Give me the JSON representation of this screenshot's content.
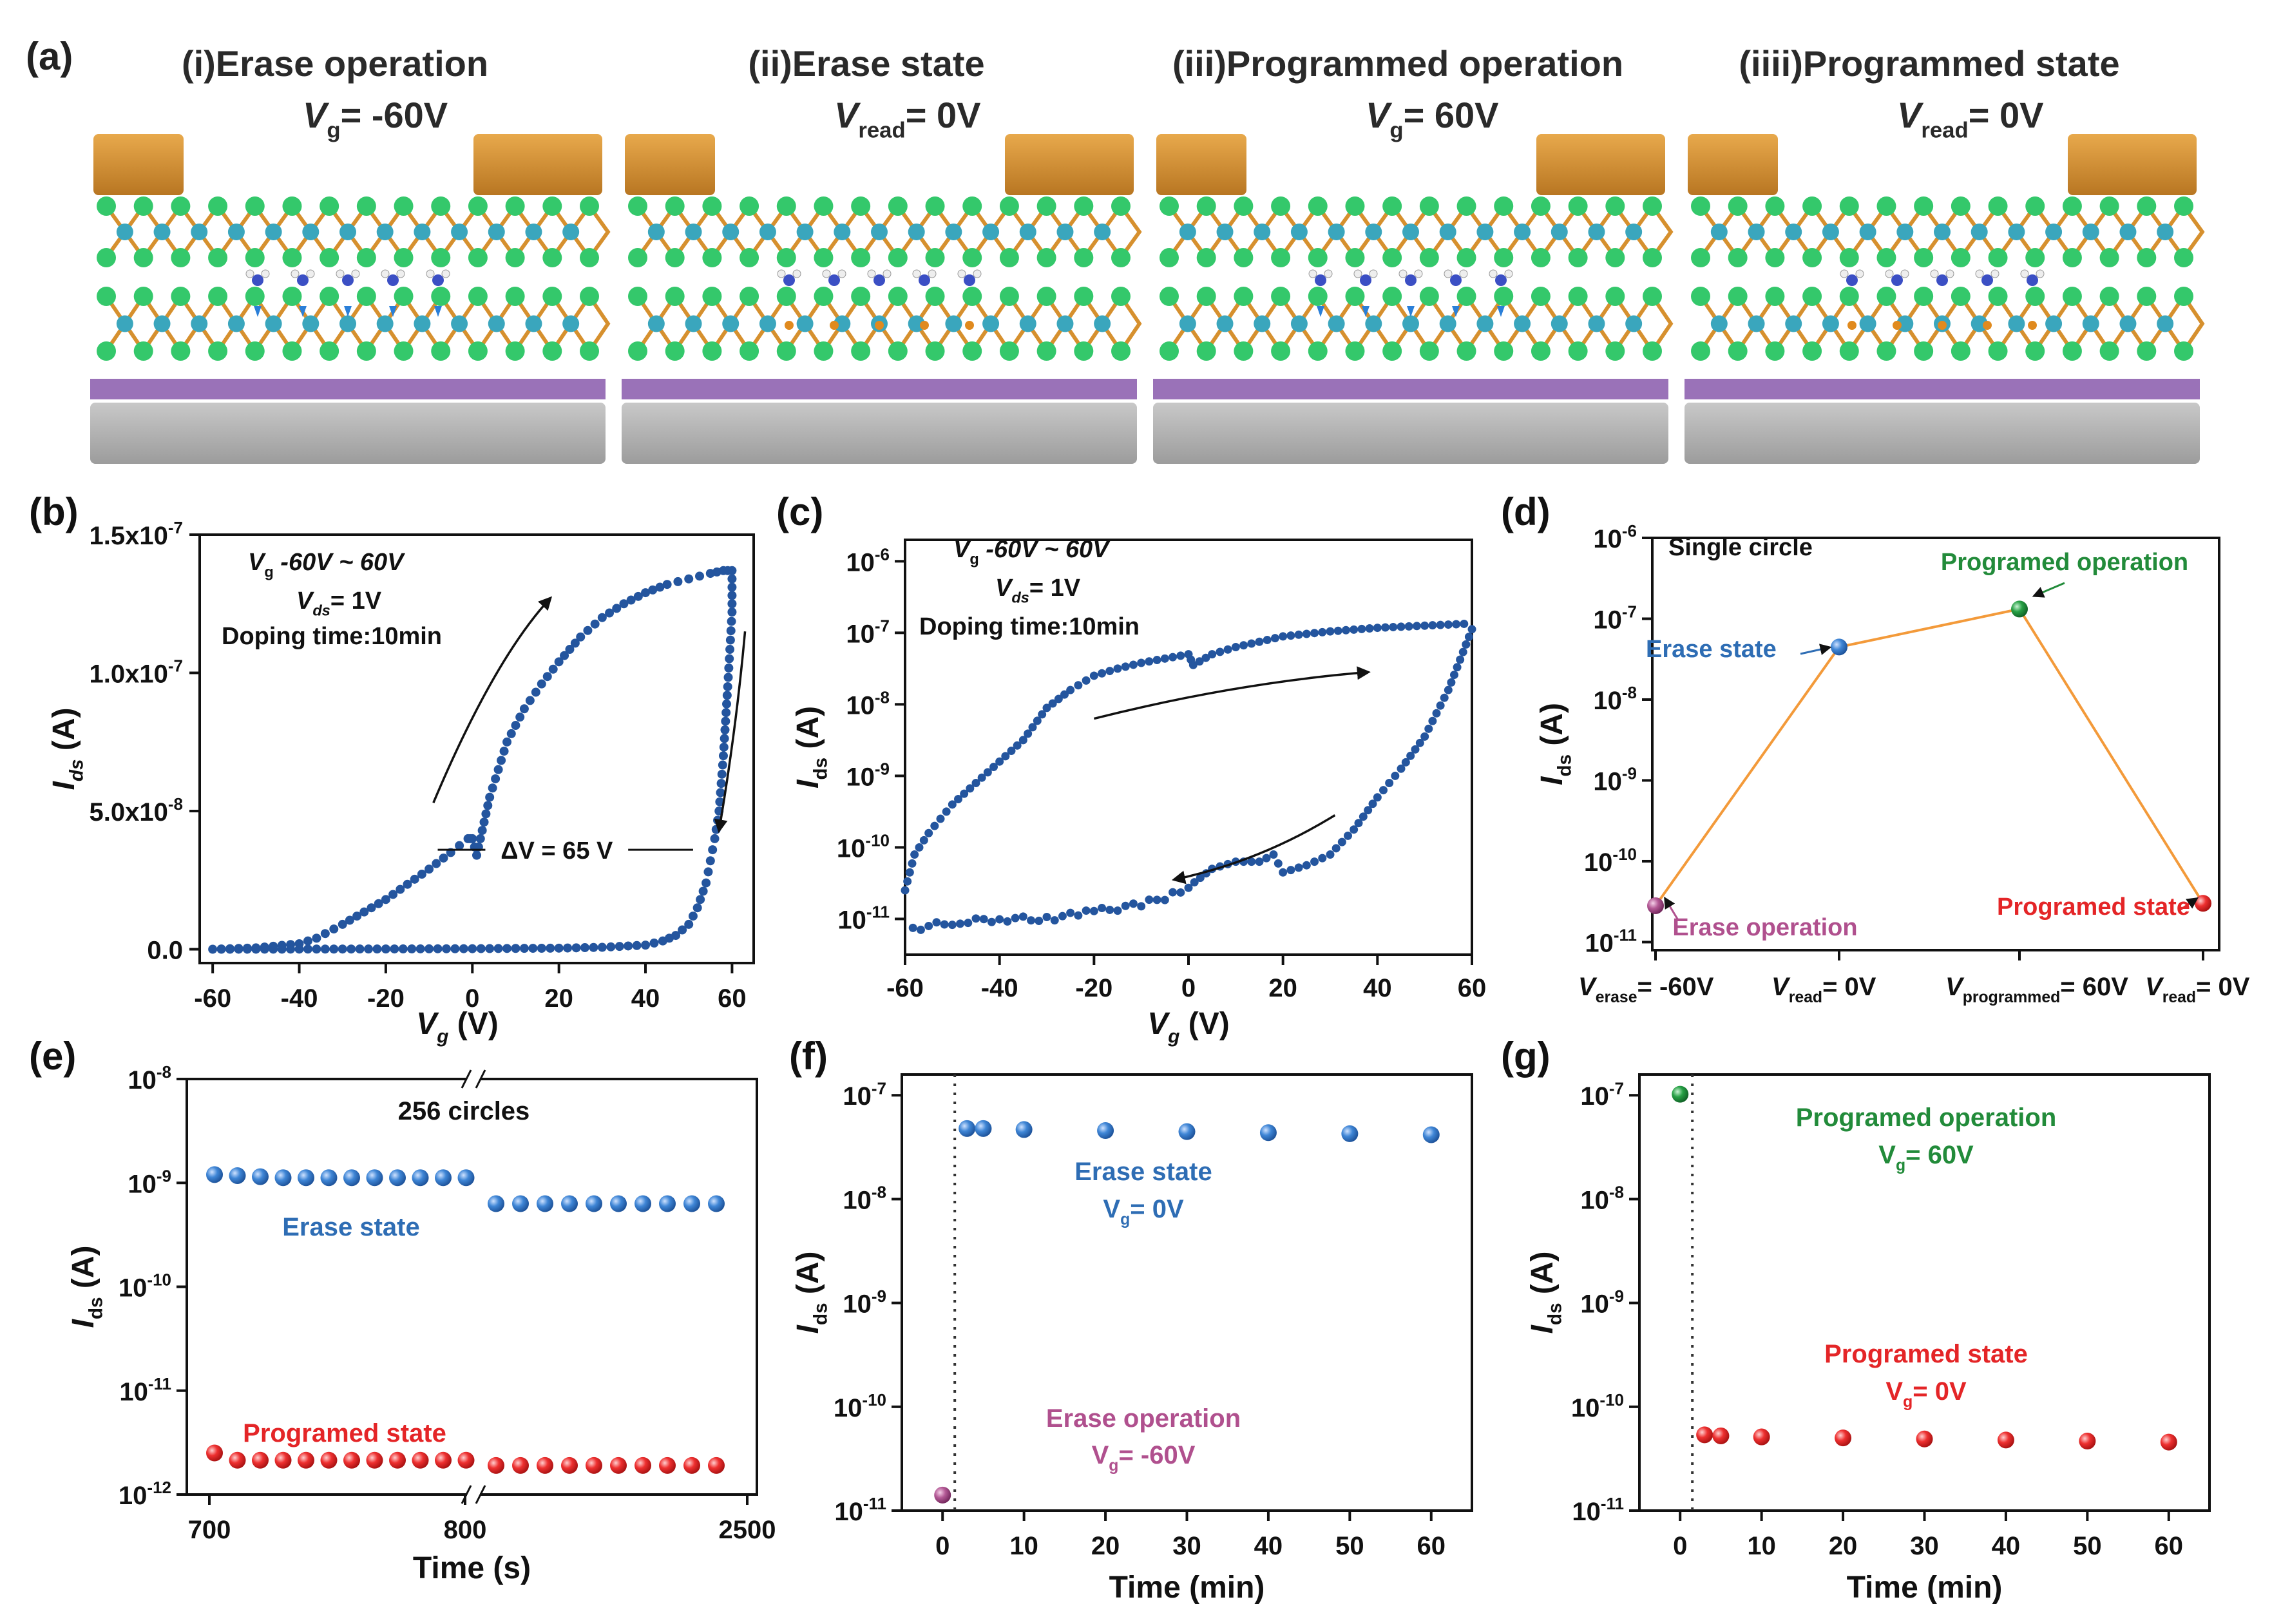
{
  "colors": {
    "blue": "#2e6db4",
    "dark_blue": "#24559e",
    "red": "#e42527",
    "green": "#228b3a",
    "purple": "#b0508e",
    "orange": "#f39a3a",
    "gold": "#d6902e",
    "purple_layer": "#9a72b8",
    "gray_layer": "#b3b3b3",
    "atom_green": "#34c86b",
    "atom_teal": "#3aa6bd"
  },
  "panel_a": {
    "label": "(a)",
    "stages": [
      {
        "title": "(i)Erase operation",
        "var": "V",
        "sub": "g",
        "value": "= -60V"
      },
      {
        "title": "(ii)Erase state",
        "var": "V",
        "sub": "read",
        "value": "= 0V"
      },
      {
        "title": "(iii)Programmed operation",
        "var": "V",
        "sub": "g",
        "value": "= 60V"
      },
      {
        "title": "(iiii)Programmed state",
        "var": "V",
        "sub": "read",
        "value": "= 0V"
      }
    ]
  },
  "chart_data": [
    {
      "id": "b",
      "label": "(b)",
      "type": "scatter",
      "title": "",
      "xlabel": "V",
      "xlabel_sub": "g",
      "xlabel_unit": "(V)",
      "ylabel": "I",
      "ylabel_sub": "ds",
      "ylabel_unit": "(A)",
      "xlim": [
        -63,
        65
      ],
      "ylim": [
        -0.05,
        1.5
      ],
      "xticks": [
        -60,
        -40,
        -20,
        0,
        20,
        40,
        60
      ],
      "xtick_labels": [
        "-60",
        "-40",
        "-20",
        "0",
        "20",
        "40",
        "60"
      ],
      "yticks": [
        0.0,
        0.5,
        1.0,
        1.5
      ],
      "ytick_labels": [
        "0.0",
        "5.0x10",
        "1.0x10",
        "1.5x10"
      ],
      "ytick_exp": [
        "",
        "-8",
        "-7",
        "-7"
      ],
      "y_units_note": "values in 1e-7 A",
      "series": [
        {
          "name": "forward sweep",
          "points": [
            [
              -60,
              0.0
            ],
            [
              -50,
              0.005
            ],
            [
              -40,
              0.02
            ],
            [
              -36,
              0.04
            ],
            [
              -30,
              0.09
            ],
            [
              -20,
              0.18
            ],
            [
              -10,
              0.29
            ],
            [
              -5,
              0.35
            ],
            [
              -1,
              0.4
            ],
            [
              0,
              0.4
            ],
            [
              1,
              0.34
            ],
            [
              4,
              0.55
            ],
            [
              8,
              0.75
            ],
            [
              12,
              0.87
            ],
            [
              16,
              0.96
            ],
            [
              20,
              1.04
            ],
            [
              25,
              1.13
            ],
            [
              30,
              1.2
            ],
            [
              35,
              1.25
            ],
            [
              40,
              1.29
            ],
            [
              45,
              1.32
            ],
            [
              50,
              1.34
            ],
            [
              55,
              1.36
            ],
            [
              58,
              1.37
            ],
            [
              60,
              1.37
            ]
          ]
        },
        {
          "name": "reverse sweep",
          "points": [
            [
              60,
              1.37
            ],
            [
              60,
              1.22
            ],
            [
              59,
              0.95
            ],
            [
              58,
              0.7
            ],
            [
              57,
              0.5
            ],
            [
              56,
              0.4
            ],
            [
              55,
              0.32
            ],
            [
              54,
              0.24
            ],
            [
              52,
              0.15
            ],
            [
              50,
              0.09
            ],
            [
              47,
              0.05
            ],
            [
              44,
              0.03
            ],
            [
              40,
              0.015
            ],
            [
              30,
              0.007
            ],
            [
              20,
              0.004
            ],
            [
              0,
              0.002
            ],
            [
              -20,
              0.001
            ],
            [
              -40,
              0.0005
            ],
            [
              -60,
              0.0
            ]
          ]
        }
      ],
      "annotations": [
        {
          "text": "V",
          "sub": "g",
          "rest": " -60V ~ 60V"
        },
        {
          "text": "V",
          "sub": "ds",
          "rest": "= 1V"
        },
        {
          "text": "Doping time:10min"
        },
        {
          "text": "ΔV = 65 V"
        }
      ]
    },
    {
      "id": "c",
      "label": "(c)",
      "type": "scatter",
      "yscale": "log",
      "xlabel": "V",
      "xlabel_sub": "g",
      "xlabel_unit": "(V)",
      "ylabel": "I",
      "ylabel_sub": "ds",
      "ylabel_unit": "(A)",
      "xlim": [
        -60,
        60
      ],
      "ylim_exp": [
        -11.5,
        -5.7
      ],
      "xticks": [
        -60,
        -40,
        -20,
        0,
        20,
        40,
        60
      ],
      "xtick_labels": [
        "-60",
        "-40",
        "-20",
        "0",
        "20",
        "40",
        "60"
      ],
      "ytick_exps": [
        -11,
        -10,
        -9,
        -8,
        -7,
        -6
      ],
      "ytick_base": "10",
      "series": [
        {
          "name": "forward sweep",
          "log_points": [
            [
              -60,
              -10.6
            ],
            [
              -58,
              -10.1
            ],
            [
              -55,
              -9.8
            ],
            [
              -50,
              -9.4
            ],
            [
              -45,
              -9.1
            ],
            [
              -40,
              -8.8
            ],
            [
              -35,
              -8.5
            ],
            [
              -30,
              -8.05
            ],
            [
              -25,
              -7.8
            ],
            [
              -20,
              -7.6
            ],
            [
              -15,
              -7.5
            ],
            [
              -10,
              -7.42
            ],
            [
              -5,
              -7.36
            ],
            [
              0,
              -7.3
            ],
            [
              1,
              -7.45
            ],
            [
              5,
              -7.3
            ],
            [
              10,
              -7.2
            ],
            [
              20,
              -7.05
            ],
            [
              30,
              -6.98
            ],
            [
              40,
              -6.93
            ],
            [
              50,
              -6.9
            ],
            [
              60,
              -6.87
            ]
          ]
        },
        {
          "name": "reverse sweep",
          "log_points": [
            [
              60,
              -6.95
            ],
            [
              55,
              -7.8
            ],
            [
              50,
              -8.45
            ],
            [
              45,
              -8.9
            ],
            [
              40,
              -9.3
            ],
            [
              35,
              -9.75
            ],
            [
              30,
              -10.1
            ],
            [
              25,
              -10.25
            ],
            [
              20,
              -10.35
            ],
            [
              18,
              -10.1
            ],
            [
              15,
              -10.2
            ],
            [
              10,
              -10.2
            ],
            [
              5,
              -10.3
            ],
            [
              0,
              -10.55
            ],
            [
              -5,
              -10.7
            ],
            [
              -10,
              -10.8
            ],
            [
              -20,
              -10.9
            ],
            [
              -25,
              -10.95
            ],
            [
              -30,
              -11.0
            ],
            [
              -40,
              -11.0
            ],
            [
              -50,
              -11.05
            ],
            [
              -60,
              -11.15
            ]
          ]
        }
      ],
      "annotations": [
        {
          "text": "V",
          "sub": "g",
          "rest": " -60V ~ 60V"
        },
        {
          "text": "V",
          "sub": "ds",
          "rest": "= 1V"
        },
        {
          "text": "Doping time:10min"
        }
      ]
    },
    {
      "id": "d",
      "label": "(d)",
      "type": "line",
      "yscale": "log",
      "ylabel": "I",
      "ylabel_sub": "ds",
      "ylabel_unit": "(A)",
      "ylim_exp": [
        -11.1,
        -6
      ],
      "ytick_exps": [
        -11,
        -10,
        -9,
        -8,
        -7,
        -6
      ],
      "ytick_base": "10",
      "title": "Single circle",
      "categories": [
        {
          "var": "V",
          "sub": "erase",
          "rest": "= -60V"
        },
        {
          "var": "V",
          "sub": "read",
          "rest": "= 0V"
        },
        {
          "var": "V",
          "sub": "programmed",
          "rest": "= 60V"
        },
        {
          "var": "V",
          "sub": "read",
          "rest": "= 0V"
        }
      ],
      "log_values": [
        -10.55,
        -7.35,
        -6.88,
        -10.52
      ],
      "point_colors": [
        "purple",
        "blue",
        "green",
        "red"
      ],
      "point_labels": [
        "Erase operation",
        "Erase state",
        "Programed operation",
        "Programed state"
      ]
    },
    {
      "id": "e",
      "label": "(e)",
      "type": "scatter",
      "yscale": "log",
      "ylabel": "I",
      "ylabel_sub": "ds",
      "ylabel_unit": "(A)",
      "xlabel": "Time (s)",
      "ylim_exp": [
        -12,
        -8
      ],
      "ytick_exps": [
        -12,
        -11,
        -10,
        -9,
        -8
      ],
      "ytick_base": "10",
      "xtick_labels": [
        "700",
        "800",
        "2500"
      ],
      "title": "256 circles",
      "series": [
        {
          "name": "Erase state",
          "color": "blue",
          "log_values": [
            -8.92,
            -8.93,
            -8.94,
            -8.95,
            -8.95,
            -8.95,
            -8.95,
            -8.95,
            -8.95,
            -8.95,
            -8.95,
            -8.95,
            -9.2,
            -9.2,
            -9.2,
            -9.2,
            -9.2,
            -9.2,
            -9.2,
            -9.2,
            -9.2,
            -9.2
          ]
        },
        {
          "name": "Programed state",
          "color": "red",
          "log_values": [
            -11.6,
            -11.67,
            -11.67,
            -11.67,
            -11.67,
            -11.67,
            -11.67,
            -11.67,
            -11.67,
            -11.67,
            -11.67,
            -11.67,
            -11.72,
            -11.72,
            -11.72,
            -11.72,
            -11.72,
            -11.72,
            -11.72,
            -11.72,
            -11.72,
            -11.72
          ]
        }
      ]
    },
    {
      "id": "f",
      "label": "(f)",
      "type": "scatter",
      "yscale": "log",
      "ylabel": "I",
      "ylabel_sub": "ds",
      "ylabel_unit": "(A)",
      "xlabel": "Time (min)",
      "xlim": [
        -5,
        65
      ],
      "xticks": [
        0,
        10,
        20,
        30,
        40,
        50,
        60
      ],
      "ylim_exp": [
        -11,
        -6.8
      ],
      "ytick_exps": [
        -11,
        -10,
        -9,
        -8,
        -7
      ],
      "ytick_base": "10",
      "series": [
        {
          "name": "Erase operation",
          "color": "purple",
          "points": [
            [
              0,
              -10.85
            ]
          ]
        },
        {
          "name": "Erase state",
          "color": "blue",
          "points": [
            [
              3,
              -7.32
            ],
            [
              5,
              -7.32
            ],
            [
              10,
              -7.33
            ],
            [
              20,
              -7.34
            ],
            [
              30,
              -7.35
            ],
            [
              40,
              -7.36
            ],
            [
              50,
              -7.37
            ],
            [
              60,
              -7.38
            ]
          ]
        }
      ],
      "annotations": [
        {
          "text": "Erase state"
        },
        {
          "text": "V",
          "sub": "g",
          "rest": "= 0V"
        },
        {
          "text": "Erase operation"
        },
        {
          "text": "V",
          "sub": "g",
          "rest": "= -60V"
        }
      ]
    },
    {
      "id": "g",
      "label": "(g)",
      "type": "scatter",
      "yscale": "log",
      "ylabel": "I",
      "ylabel_sub": "ds",
      "ylabel_unit": "(A)",
      "xlabel": "Time (min)",
      "xlim": [
        -5,
        65
      ],
      "xticks": [
        0,
        10,
        20,
        30,
        40,
        50,
        60
      ],
      "ylim_exp": [
        -11,
        -6.8
      ],
      "ytick_exps": [
        -11,
        -10,
        -9,
        -8,
        -7
      ],
      "ytick_base": "10",
      "series": [
        {
          "name": "Programed operation",
          "color": "green",
          "points": [
            [
              0,
              -6.99
            ]
          ]
        },
        {
          "name": "Programed state",
          "color": "red",
          "points": [
            [
              3,
              -10.27
            ],
            [
              5,
              -10.28
            ],
            [
              10,
              -10.29
            ],
            [
              20,
              -10.3
            ],
            [
              30,
              -10.31
            ],
            [
              40,
              -10.32
            ],
            [
              50,
              -10.33
            ],
            [
              60,
              -10.34
            ]
          ]
        }
      ],
      "annotations": [
        {
          "text": "Programed operation"
        },
        {
          "text": "V",
          "sub": "g",
          "rest": "= 60V"
        },
        {
          "text": "Programed state"
        },
        {
          "text": "V",
          "sub": "g",
          "rest": "= 0V"
        }
      ]
    }
  ]
}
